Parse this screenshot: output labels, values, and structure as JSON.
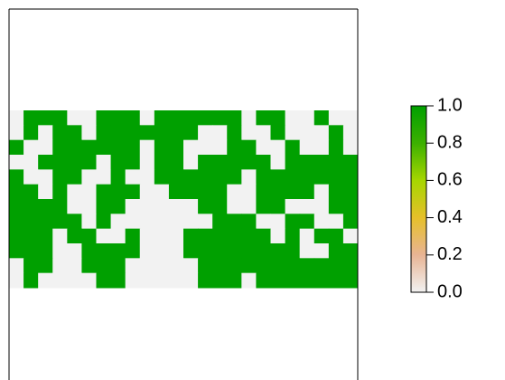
{
  "chart_data": {
    "type": "raster",
    "values": [
      [
        0,
        1,
        1,
        1,
        0,
        0,
        1,
        1,
        1,
        0,
        1,
        1,
        1,
        1,
        1,
        1,
        0,
        1,
        1,
        0,
        0,
        1,
        0,
        0
      ],
      [
        0,
        1,
        0,
        1,
        1,
        0,
        1,
        1,
        1,
        1,
        1,
        1,
        1,
        0,
        0,
        1,
        0,
        0,
        1,
        0,
        0,
        0,
        1,
        0
      ],
      [
        1,
        0,
        0,
        1,
        1,
        1,
        1,
        1,
        1,
        0,
        1,
        1,
        0,
        0,
        0,
        1,
        1,
        0,
        0,
        1,
        0,
        0,
        1,
        0
      ],
      [
        0,
        0,
        1,
        1,
        1,
        1,
        0,
        1,
        1,
        0,
        1,
        1,
        0,
        1,
        1,
        1,
        1,
        1,
        0,
        1,
        1,
        1,
        1,
        1
      ],
      [
        1,
        0,
        0,
        1,
        1,
        0,
        0,
        1,
        0,
        0,
        1,
        1,
        1,
        1,
        1,
        1,
        0,
        1,
        1,
        1,
        1,
        1,
        1,
        1
      ],
      [
        1,
        1,
        0,
        1,
        0,
        0,
        1,
        1,
        1,
        0,
        0,
        1,
        1,
        1,
        1,
        0,
        0,
        1,
        1,
        1,
        1,
        0,
        1,
        1
      ],
      [
        1,
        1,
        1,
        1,
        0,
        0,
        1,
        1,
        0,
        0,
        0,
        0,
        0,
        1,
        1,
        0,
        0,
        1,
        1,
        0,
        0,
        0,
        1,
        1
      ],
      [
        1,
        1,
        1,
        1,
        1,
        0,
        1,
        0,
        0,
        0,
        0,
        0,
        0,
        0,
        1,
        1,
        1,
        0,
        0,
        1,
        1,
        0,
        0,
        1
      ],
      [
        1,
        1,
        1,
        0,
        1,
        1,
        0,
        0,
        1,
        0,
        0,
        0,
        1,
        1,
        1,
        1,
        1,
        1,
        0,
        1,
        0,
        1,
        1,
        0
      ],
      [
        1,
        1,
        1,
        0,
        0,
        1,
        1,
        1,
        1,
        0,
        0,
        0,
        1,
        1,
        1,
        1,
        1,
        1,
        1,
        1,
        0,
        0,
        1,
        1
      ],
      [
        0,
        1,
        1,
        0,
        0,
        1,
        1,
        1,
        0,
        0,
        0,
        0,
        0,
        1,
        1,
        1,
        1,
        1,
        1,
        1,
        1,
        1,
        1,
        1
      ],
      [
        0,
        1,
        0,
        0,
        0,
        0,
        1,
        1,
        0,
        0,
        0,
        0,
        0,
        1,
        1,
        1,
        0,
        1,
        1,
        1,
        1,
        1,
        1,
        1
      ]
    ],
    "colormap": [
      "#f2f2f2",
      "#e8b494",
      "#e6c02a",
      "#a6d600",
      "#3cb000",
      "#00a000"
    ],
    "zlim": [
      0,
      1
    ],
    "zticks": [
      {
        "value": 0,
        "label": "0.0"
      },
      {
        "value": 0.2,
        "label": "0.2"
      },
      {
        "value": 0.4,
        "label": "0.4"
      },
      {
        "value": 0.6,
        "label": "0.6"
      },
      {
        "value": 0.8,
        "label": "0.8"
      },
      {
        "value": 1,
        "label": "1.0"
      }
    ]
  }
}
